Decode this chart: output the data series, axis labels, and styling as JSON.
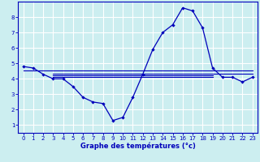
{
  "xlabel": "Graphe des températures (°c)",
  "bg_color": "#cceef0",
  "grid_color": "#aadddd",
  "line_color": "#0000bb",
  "xlim": [
    -0.5,
    23.5
  ],
  "ylim": [
    0.5,
    9.0
  ],
  "yticks": [
    1,
    2,
    3,
    4,
    5,
    6,
    7,
    8
  ],
  "xticks": [
    0,
    1,
    2,
    3,
    4,
    5,
    6,
    7,
    8,
    9,
    10,
    11,
    12,
    13,
    14,
    15,
    16,
    17,
    18,
    19,
    20,
    21,
    22,
    23
  ],
  "curve1_x": [
    0,
    1,
    2,
    3,
    4,
    5,
    6,
    7,
    8,
    9,
    10,
    11,
    12,
    13,
    14,
    15,
    16,
    17,
    18,
    19,
    20,
    21,
    22,
    23
  ],
  "curve1_y": [
    4.8,
    4.7,
    4.3,
    4.0,
    4.0,
    3.5,
    2.8,
    2.5,
    2.4,
    1.3,
    1.5,
    2.8,
    4.3,
    5.9,
    7.0,
    7.5,
    8.6,
    8.4,
    7.3,
    4.7,
    4.1,
    4.1,
    3.8,
    4.1
  ],
  "hline1_x": [
    0,
    23
  ],
  "hline1_y": [
    4.55,
    4.55
  ],
  "hline2_x": [
    3,
    23
  ],
  "hline2_y": [
    4.35,
    4.35
  ],
  "hline3_x": [
    3,
    19
  ],
  "hline3_y": [
    4.2,
    4.2
  ],
  "hline4_x": [
    3,
    19
  ],
  "hline4_y": [
    4.1,
    4.1
  ]
}
